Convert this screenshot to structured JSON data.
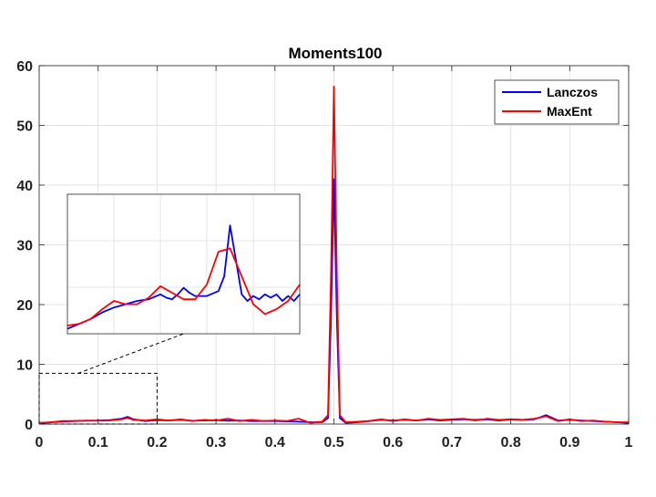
{
  "chart_data": [
    {
      "type": "line",
      "title": "Moments100",
      "xlabel": "",
      "ylabel": "",
      "xlim": [
        0,
        1
      ],
      "ylim": [
        0,
        60
      ],
      "grid": true,
      "legend_position": "top-right",
      "xticks": [
        "0",
        "0.1",
        "0.2",
        "0.3",
        "0.4",
        "0.5",
        "0.6",
        "0.7",
        "0.8",
        "0.9",
        "1"
      ],
      "yticks": [
        "0",
        "10",
        "20",
        "30",
        "40",
        "50",
        "60"
      ],
      "zoom_region": {
        "x": [
          0,
          0.2
        ],
        "y": [
          0,
          8.5
        ]
      },
      "series": [
        {
          "name": "Lanczos",
          "color": "#0000ff",
          "x": [
            0,
            0.02,
            0.04,
            0.06,
            0.08,
            0.1,
            0.12,
            0.14,
            0.15,
            0.16,
            0.18,
            0.2,
            0.22,
            0.24,
            0.26,
            0.28,
            0.3,
            0.32,
            0.34,
            0.36,
            0.38,
            0.4,
            0.42,
            0.44,
            0.46,
            0.48,
            0.49,
            0.495,
            0.5,
            0.505,
            0.51,
            0.52,
            0.54,
            0.56,
            0.58,
            0.6,
            0.62,
            0.64,
            0.66,
            0.68,
            0.7,
            0.72,
            0.74,
            0.76,
            0.78,
            0.8,
            0.82,
            0.84,
            0.86,
            0.88,
            0.9,
            0.92,
            0.94,
            0.96,
            0.98,
            1
          ],
          "y": [
            0.1,
            0.3,
            0.4,
            0.5,
            0.55,
            0.6,
            0.65,
            0.9,
            1.2,
            0.8,
            0.5,
            0.65,
            0.6,
            0.7,
            0.55,
            0.6,
            0.65,
            0.55,
            0.6,
            0.5,
            0.5,
            0.5,
            0.45,
            0.4,
            0.3,
            0.3,
            1.0,
            18.0,
            41.0,
            18.0,
            1.0,
            0.2,
            0.3,
            0.5,
            0.7,
            0.6,
            0.7,
            0.6,
            0.8,
            0.6,
            0.7,
            0.8,
            0.7,
            0.8,
            0.6,
            0.8,
            0.7,
            0.8,
            1.5,
            0.6,
            0.7,
            0.6,
            0.5,
            0.4,
            0.3,
            0.2
          ]
        },
        {
          "name": "MaxEnt",
          "color": "#ff0000",
          "x": [
            0,
            0.02,
            0.04,
            0.06,
            0.08,
            0.1,
            0.12,
            0.14,
            0.15,
            0.16,
            0.18,
            0.2,
            0.22,
            0.24,
            0.26,
            0.28,
            0.3,
            0.32,
            0.34,
            0.36,
            0.38,
            0.4,
            0.42,
            0.44,
            0.46,
            0.48,
            0.49,
            0.495,
            0.5,
            0.505,
            0.51,
            0.52,
            0.54,
            0.56,
            0.58,
            0.6,
            0.62,
            0.64,
            0.66,
            0.68,
            0.7,
            0.72,
            0.74,
            0.76,
            0.78,
            0.8,
            0.82,
            0.84,
            0.86,
            0.88,
            0.9,
            0.92,
            0.94,
            0.96,
            0.98,
            1
          ],
          "y": [
            0.2,
            0.3,
            0.5,
            0.5,
            0.6,
            0.55,
            0.6,
            0.8,
            1.0,
            0.7,
            0.6,
            0.8,
            0.6,
            0.8,
            0.5,
            0.7,
            0.6,
            0.9,
            0.5,
            0.7,
            0.5,
            0.6,
            0.5,
            0.9,
            0.2,
            0.4,
            1.5,
            25.0,
            56.5,
            25.0,
            1.5,
            0.3,
            0.4,
            0.5,
            0.8,
            0.5,
            0.8,
            0.6,
            0.9,
            0.7,
            0.8,
            0.9,
            0.6,
            0.9,
            0.7,
            0.8,
            0.7,
            0.9,
            1.3,
            0.5,
            0.8,
            0.5,
            0.6,
            0.4,
            0.3,
            0.3
          ]
        }
      ]
    },
    {
      "type": "line",
      "title": "",
      "xlim": [
        0,
        0.2
      ],
      "ylim": [
        0,
        8.5
      ],
      "grid": true,
      "series": [
        {
          "name": "Lanczos",
          "color": "#0000ff",
          "x": [
            0,
            0.01,
            0.02,
            0.03,
            0.04,
            0.05,
            0.06,
            0.07,
            0.08,
            0.085,
            0.09,
            0.095,
            0.1,
            0.105,
            0.11,
            0.12,
            0.13,
            0.135,
            0.14,
            0.145,
            0.15,
            0.155,
            0.16,
            0.165,
            0.17,
            0.175,
            0.18,
            0.185,
            0.19,
            0.195,
            0.2
          ],
          "y": [
            0.3,
            0.6,
            0.9,
            1.3,
            1.6,
            1.8,
            2.0,
            2.1,
            2.4,
            2.2,
            2.1,
            2.4,
            2.8,
            2.5,
            2.3,
            2.3,
            2.6,
            3.5,
            6.6,
            4.5,
            2.4,
            2.0,
            2.3,
            2.1,
            2.4,
            2.2,
            2.4,
            2.0,
            2.3,
            2.0,
            2.4
          ]
        },
        {
          "name": "MaxEnt",
          "color": "#ff0000",
          "x": [
            0,
            0.01,
            0.02,
            0.03,
            0.04,
            0.05,
            0.06,
            0.07,
            0.08,
            0.09,
            0.1,
            0.11,
            0.12,
            0.13,
            0.14,
            0.15,
            0.16,
            0.17,
            0.18,
            0.19,
            0.2
          ],
          "y": [
            0.5,
            0.6,
            0.9,
            1.5,
            2.0,
            1.8,
            1.8,
            2.2,
            2.9,
            2.5,
            2.1,
            2.1,
            3.0,
            5.0,
            5.2,
            3.5,
            1.8,
            1.2,
            1.5,
            2.0,
            3.0
          ]
        }
      ]
    }
  ]
}
